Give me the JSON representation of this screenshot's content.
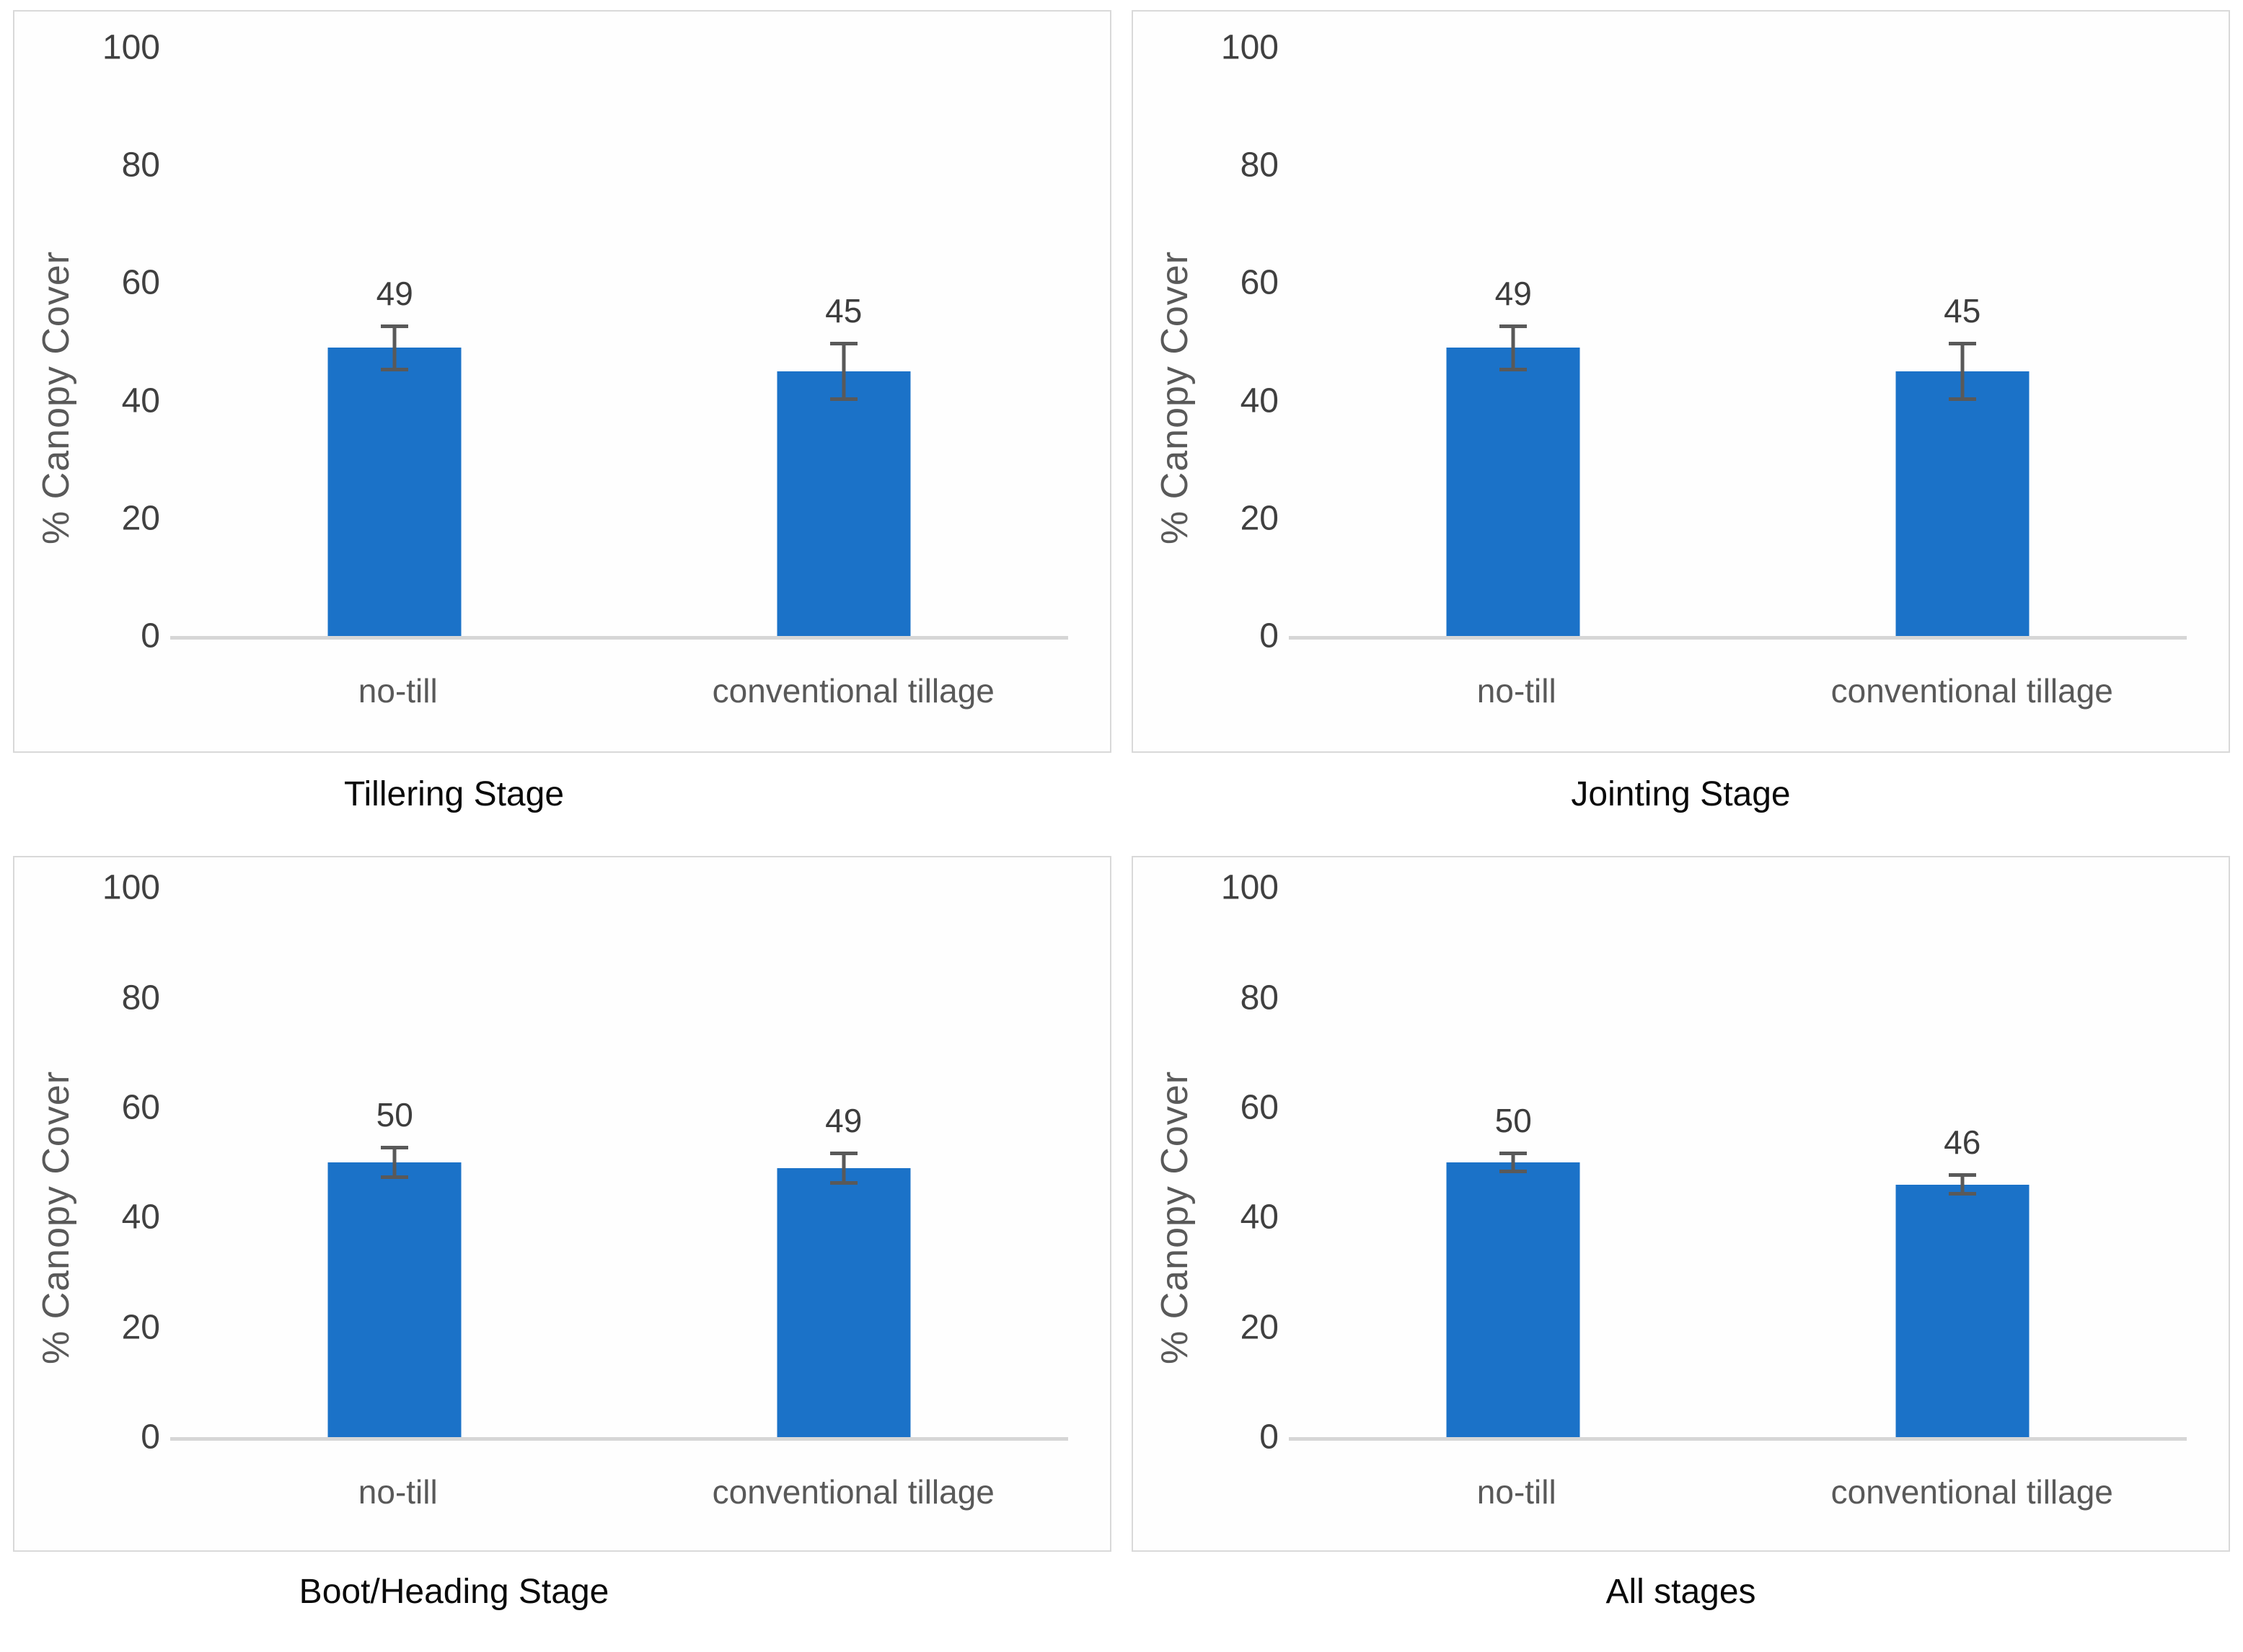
{
  "figure": {
    "background": "#ffffff",
    "layout": "2x2 grid of bar chart panels"
  },
  "colors": {
    "bar": "#1B72C8",
    "axis_line": "#D6D6D6",
    "error_bar": "#595959",
    "tick_text": "#404040",
    "category_text": "#595959",
    "value_text": "#3D3D3D",
    "title_text": "#0A0A0A",
    "panel_border": "#D9D9D9",
    "panel_bg": "#FEFEFE"
  },
  "chart_data": [
    {
      "type": "bar",
      "title": "Tillering Stage",
      "ylabel": "% Canopy Cover",
      "xlabel": "",
      "categories": [
        "no-till",
        "conventional tillage"
      ],
      "values": [
        49,
        45
      ],
      "data_labels": [
        "49",
        "45"
      ],
      "error_bars": [
        4,
        5
      ],
      "ylim": [
        0,
        100
      ],
      "yticks": [
        100,
        80,
        60,
        40,
        20,
        0
      ],
      "grid": false,
      "legend": "none",
      "bar_color": "#1B72C8"
    },
    {
      "type": "bar",
      "title": "Jointing Stage",
      "ylabel": "% Canopy Cover",
      "xlabel": "",
      "categories": [
        "no-till",
        "conventional tillage"
      ],
      "values": [
        49,
        45
      ],
      "data_labels": [
        "49",
        "45"
      ],
      "error_bars": [
        4,
        5
      ],
      "ylim": [
        0,
        100
      ],
      "yticks": [
        100,
        80,
        60,
        40,
        20,
        0
      ],
      "grid": false,
      "legend": "none",
      "bar_color": "#1B72C8"
    },
    {
      "type": "bar",
      "title": "Boot/Heading Stage",
      "ylabel": "% Canopy Cover",
      "xlabel": "",
      "categories": [
        "no-till",
        "conventional tillage"
      ],
      "values": [
        50,
        49
      ],
      "data_labels": [
        "50",
        "49"
      ],
      "error_bars": [
        3,
        3
      ],
      "ylim": [
        0,
        100
      ],
      "yticks": [
        100,
        80,
        60,
        40,
        20,
        0
      ],
      "grid": false,
      "legend": "none",
      "bar_color": "#1B72C8"
    },
    {
      "type": "bar",
      "title": "All stages",
      "ylabel": "% Canopy Cover",
      "xlabel": "",
      "categories": [
        "no-till",
        "conventional tillage"
      ],
      "values": [
        50,
        46
      ],
      "data_labels": [
        "50",
        "46"
      ],
      "error_bars": [
        2,
        2
      ],
      "ylim": [
        0,
        100
      ],
      "yticks": [
        100,
        80,
        60,
        40,
        20,
        0
      ],
      "grid": false,
      "legend": "none",
      "bar_color": "#1B72C8"
    }
  ]
}
